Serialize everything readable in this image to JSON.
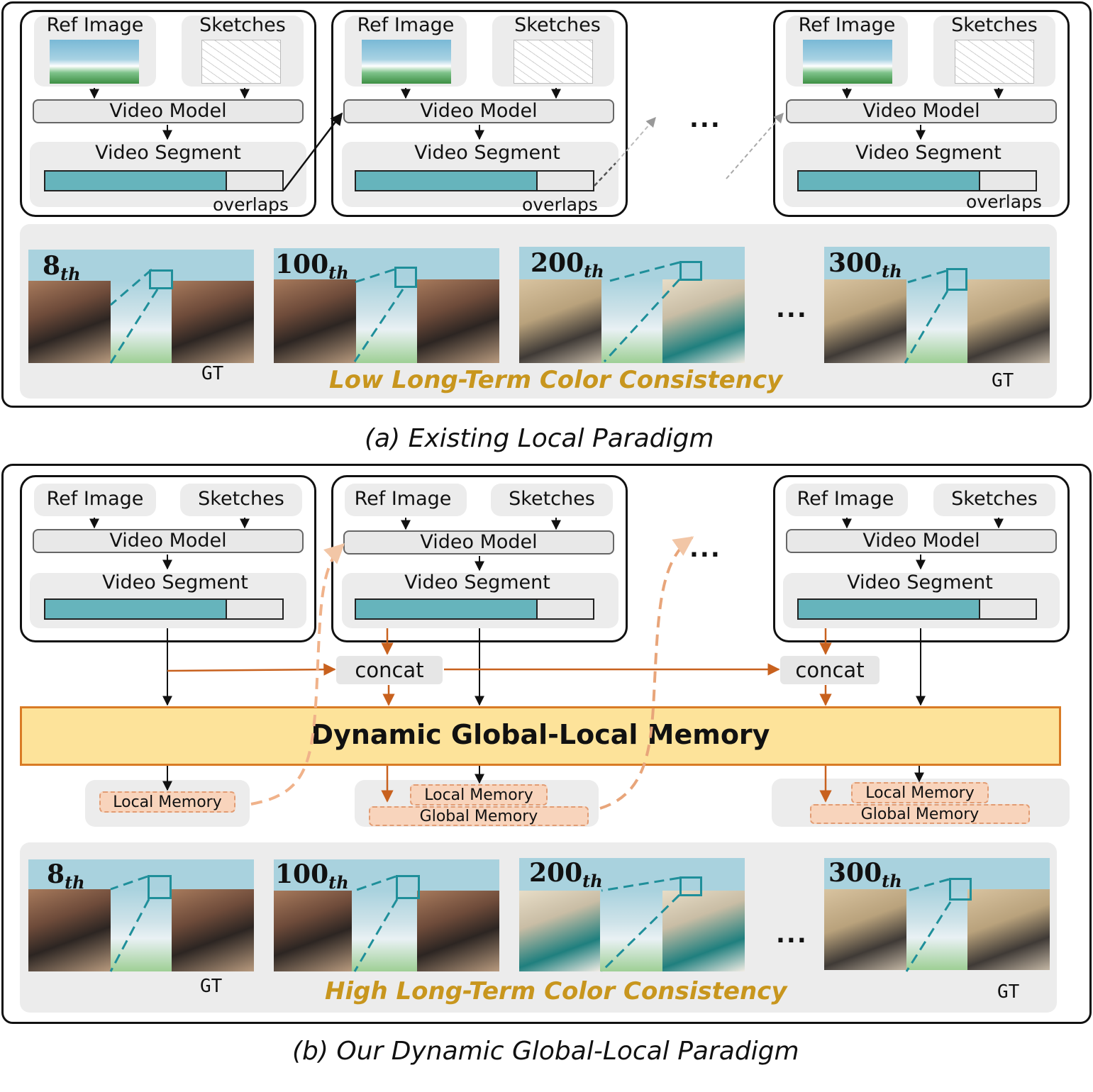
{
  "top": {
    "blocks": [
      {
        "ref_label": "Ref Image",
        "sketch_label": "Sketches",
        "model_label": "Video Model",
        "segment_label": "Video Segment",
        "overlaps_label": "overlaps"
      },
      {
        "ref_label": "Ref Image",
        "sketch_label": "Sketches",
        "model_label": "Video Model",
        "segment_label": "Video Segment",
        "overlaps_label": "overlaps"
      },
      {
        "ref_label": "Ref Image",
        "sketch_label": "Sketches",
        "model_label": "Video Model",
        "segment_label": "Video Segment",
        "overlaps_label": "overlaps"
      }
    ],
    "ellipsis": "...",
    "frames": [
      {
        "num": "8",
        "suffix": "th"
      },
      {
        "num": "100",
        "suffix": "th"
      },
      {
        "num": "200",
        "suffix": "th"
      },
      {
        "num": "300",
        "suffix": "th"
      }
    ],
    "frames_ellipsis": "...",
    "gt_left": "GT",
    "gt_right": "GT",
    "consistency": "Low Long-Term Color Consistency",
    "caption": "(a) Existing Local  Paradigm"
  },
  "bottom": {
    "blocks": [
      {
        "ref_label": "Ref Image",
        "sketch_label": "Sketches",
        "model_label": "Video Model",
        "segment_label": "Video Segment"
      },
      {
        "ref_label": "Ref Image",
        "sketch_label": "Sketches",
        "model_label": "Video Model",
        "segment_label": "Video Segment"
      },
      {
        "ref_label": "Ref Image",
        "sketch_label": "Sketches",
        "model_label": "Video Model",
        "segment_label": "Video Segment"
      }
    ],
    "ellipsis": "...",
    "concat_1": "concat",
    "concat_2": "concat",
    "memory_title": "Dynamic Global-Local Memory",
    "local_memory_1": "Local Memory",
    "local_memory_2": "Local Memory",
    "global_memory_2": "Global Memory",
    "local_memory_3": "Local Memory",
    "global_memory_3": "Global Memory",
    "frames": [
      {
        "num": "8",
        "suffix": "th"
      },
      {
        "num": "100",
        "suffix": "th"
      },
      {
        "num": "200",
        "suffix": "th"
      },
      {
        "num": "300",
        "suffix": "th"
      }
    ],
    "frames_ellipsis": "...",
    "gt_left": "GT",
    "gt_right": "GT",
    "consistency": "High Long-Term Color Consistency",
    "caption": "(b) Our Dynamic Global-Local Paradigm"
  },
  "colors": {
    "segment_fill": "#66b4bc",
    "memory_fill": "#fde39a",
    "memory_border": "#d97b25",
    "orange_arrow": "#c8611e",
    "consistency_text": "#c8961e",
    "memory_chip": "#f8d4bc"
  }
}
